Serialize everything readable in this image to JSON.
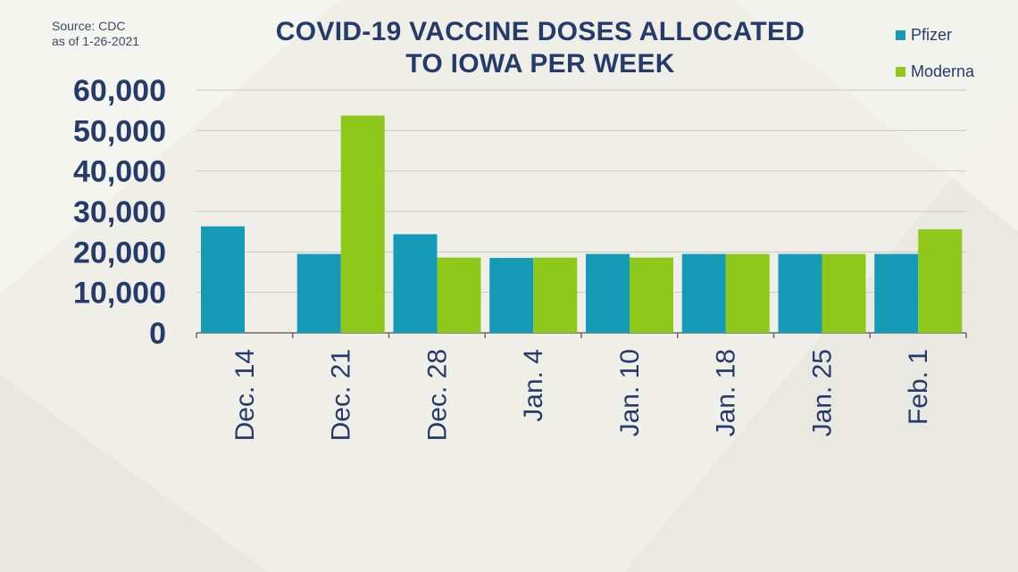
{
  "source": {
    "line1": "Source: CDC",
    "line2": "as of 1-26-2021"
  },
  "colors": {
    "pfizer": "#1499b7",
    "moderna": "#8dc81b",
    "text": "#243b6b",
    "grid": "#c9c9c2",
    "axis": "#6b6b6b"
  },
  "chart_data": {
    "type": "bar",
    "title": "COVID-19 VACCINE DOSES ALLOCATED TO IOWA PER WEEK",
    "title_lines": [
      "COVID-19 VACCINE DOSES ALLOCATED",
      "TO IOWA PER WEEK"
    ],
    "xlabel": "",
    "ylabel": "",
    "ylim": [
      0,
      60000
    ],
    "yticks": [
      0,
      10000,
      20000,
      30000,
      40000,
      50000,
      60000
    ],
    "ytick_labels": [
      "0",
      "10,000",
      "20,000",
      "30,000",
      "40,000",
      "50,000",
      "60,000"
    ],
    "categories": [
      "Dec. 14",
      "Dec. 21",
      "Dec. 28",
      "Jan. 4",
      "Jan. 10",
      "Jan. 18",
      "Jan. 25",
      "Feb. 1"
    ],
    "series": [
      {
        "name": "Pfizer",
        "color": "#1499b7",
        "values": [
          26325,
          19500,
          24375,
          18525,
          19500,
          19500,
          19500,
          19500
        ]
      },
      {
        "name": "Moderna",
        "color": "#8dc81b",
        "values": [
          0,
          53700,
          18600,
          18600,
          18600,
          19500,
          19500,
          25600
        ]
      }
    ],
    "grid": true,
    "legend_position": "top-right"
  }
}
